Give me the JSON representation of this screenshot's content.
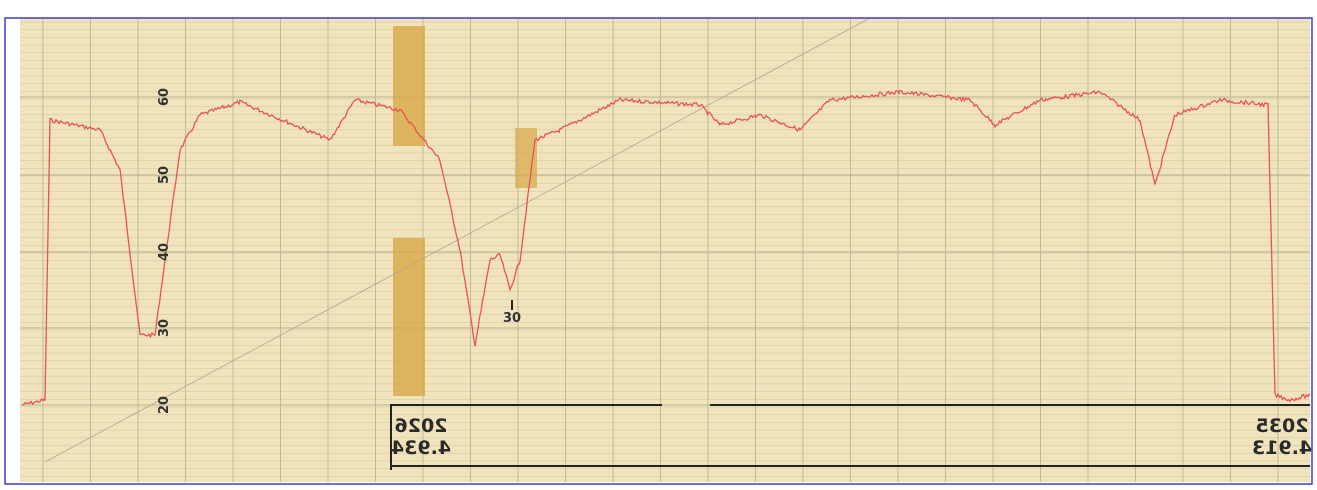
{
  "scale_labels": [
    "60",
    "50",
    "40",
    "30",
    "20"
  ],
  "stamps": [
    {
      "code": "2026",
      "value": "4.934"
    },
    {
      "code": "2035",
      "value": "4.913"
    }
  ],
  "marker": "30"
}
